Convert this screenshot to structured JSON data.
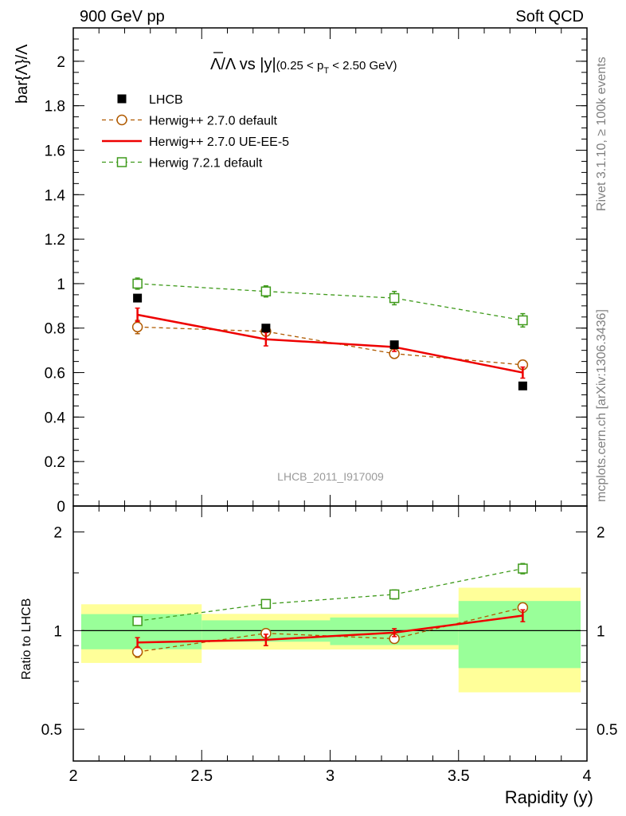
{
  "header": {
    "left": "900 GeV pp",
    "right": "Soft QCD"
  },
  "side_texts": {
    "rivet": "Rivet 3.1.10, ≥ 100k events",
    "mcplots": "mcplots.cern.ch [arXiv:1306.3436]"
  },
  "main_title": {
    "prefix": "Λ/Λ vs |y|",
    "cut": "(0.25 < p",
    "cut_sub": "T",
    "cut_end": " < 2.50 GeV)"
  },
  "analysis_id": "LHCB_2011_I917009",
  "chart_data": {
    "type": "line",
    "title": "Λ̄/Λ vs |y| (0.25 < pT < 2.50 GeV)",
    "xlabel": "Rapidity (y)",
    "ylabel": "bar{Λ}/Λ",
    "ratio_ylabel": "Ratio to LHCB",
    "xlim": [
      2,
      4
    ],
    "ylim": [
      0,
      2.15
    ],
    "ratio_ylim": [
      0.4,
      2.4
    ],
    "ratio_log": true,
    "x_ticks": [
      "2",
      "2.5",
      "3",
      "3.5",
      "4"
    ],
    "y_ticks": [
      "0",
      "0.2",
      "0.4",
      "0.6",
      "0.8",
      "1",
      "1.2",
      "1.4",
      "1.6",
      "1.8",
      "2"
    ],
    "ratio_ticks": [
      "0.5",
      "1",
      "2"
    ],
    "bins": [
      [
        2.0,
        2.5
      ],
      [
        2.5,
        3.0
      ],
      [
        3.0,
        3.5
      ],
      [
        3.5,
        4.0
      ]
    ],
    "x": [
      2.25,
      2.75,
      3.25,
      3.75
    ],
    "series": [
      {
        "name": "LHCB",
        "style": "data",
        "color": "#000000",
        "values": [
          0.935,
          0.8,
          0.725,
          0.54
        ],
        "band_inner": [
          0.115,
          0.06,
          0.07,
          0.125
        ],
        "band_outer": [
          0.19,
          0.1,
          0.09,
          0.19
        ]
      },
      {
        "name": "Herwig++ 2.7.0 default",
        "style": "circle-dashed",
        "color": "#b05a00",
        "values": [
          0.805,
          0.785,
          0.685,
          0.635
        ],
        "errors": [
          0.03,
          0.02,
          0.02,
          0.02
        ]
      },
      {
        "name": "Herwig++ 2.7.0 UE-EE-5",
        "style": "solid",
        "color": "#ee0000",
        "values": [
          0.86,
          0.75,
          0.715,
          0.6
        ],
        "errors": [
          0.03,
          0.03,
          0.02,
          0.025
        ]
      },
      {
        "name": "Herwig 7.2.1 default",
        "style": "square-dashed",
        "color": "#3f9a1b",
        "values": [
          1.0,
          0.965,
          0.935,
          0.835
        ],
        "errors": [
          0.025,
          0.025,
          0.03,
          0.03
        ]
      }
    ],
    "legend_position": "top-left",
    "grid": false
  }
}
